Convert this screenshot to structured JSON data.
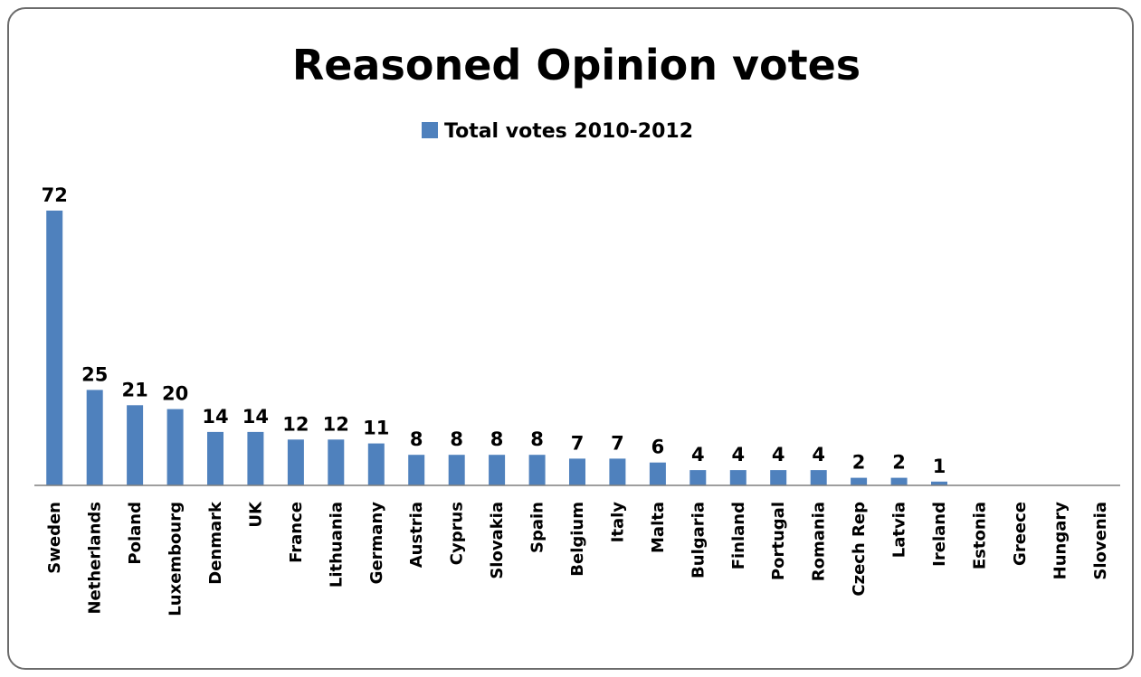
{
  "chart_data": {
    "type": "bar",
    "title": "Reasoned Opinion votes",
    "legend_position": "top-center",
    "grid": false,
    "bar_color": "#4f81bd",
    "series": [
      {
        "name": "Total votes 2010-2012",
        "values": [
          72,
          25,
          21,
          20,
          14,
          14,
          12,
          12,
          11,
          8,
          8,
          8,
          8,
          7,
          7,
          6,
          4,
          4,
          4,
          4,
          2,
          2,
          1,
          0,
          0,
          0,
          0
        ]
      }
    ],
    "categories": [
      "Sweden",
      "Netherlands",
      "Poland",
      "Luxembourg",
      "Denmark",
      "UK",
      "France",
      "Lithuania",
      "Germany",
      "Austria",
      "Cyprus",
      "Slovakia",
      "Spain",
      "Belgium",
      "Italy",
      "Malta",
      "Bulgaria",
      "Finland",
      "Portugal",
      "Romania",
      "Czech Rep",
      "Latvia",
      "Ireland",
      "Estonia",
      "Greece",
      "Hungary",
      "Slovenia"
    ],
    "value_labels": [
      "72",
      "25",
      "21",
      "20",
      "14",
      "14",
      "12",
      "12",
      "11",
      "8",
      "8",
      "8",
      "8",
      "7",
      "7",
      "6",
      "4",
      "4",
      "4",
      "4",
      "2",
      "2",
      "1",
      "",
      "",
      "",
      ""
    ],
    "ylim": [
      0,
      72
    ]
  }
}
